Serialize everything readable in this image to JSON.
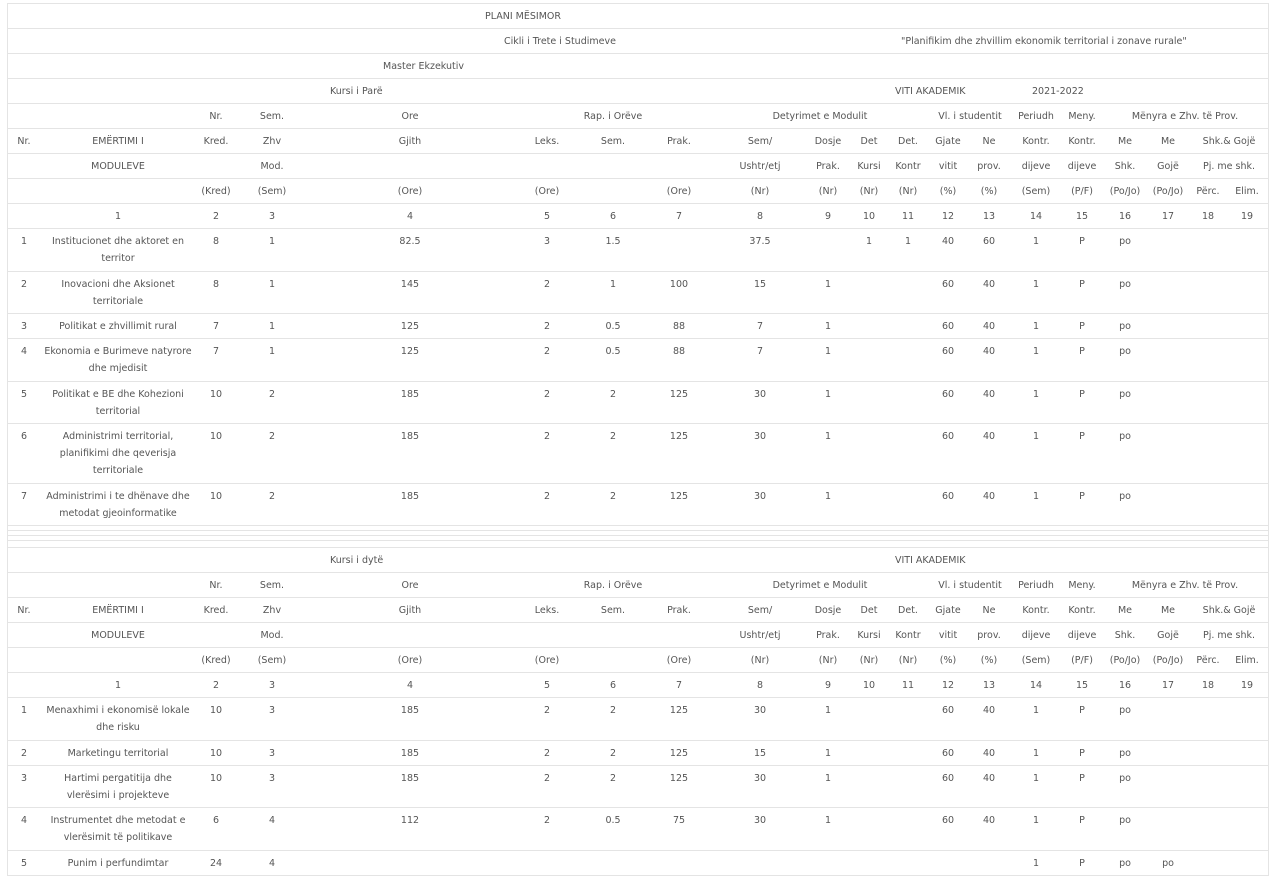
{
  "title": "PLANI MËSIMOR",
  "cycle": "Cikli i Trete i Studimeve",
  "program": "\"Planifikim dhe zhvillim ekonomik territorial i zonave rurale\"",
  "degree": "Master Ekzekutiv",
  "year1": {
    "course": "Kursi i Parë",
    "academic_label": "VITI AKADEMIK",
    "academic_year": "2021-2022"
  },
  "year2": {
    "course": "Kursi i dytë",
    "academic_label": "VITI AKADEMIK"
  },
  "header": {
    "r1": {
      "kred": "Nr.",
      "sem": "Sem.",
      "ore": "Ore",
      "rap": "Rap. i Orëve",
      "det": "Detyrimet e Modulit",
      "vl": "Vl. i studentit",
      "periudh": "Periudh",
      "meny": "Meny.",
      "menyra": "Mënyra e Zhv. të Prov."
    },
    "r2": {
      "nr": "Nr.",
      "name": "EMËRTIMI I",
      "kred": "Kred.",
      "sem": "Zhv",
      "ore": "Gjith",
      "leks": "Leks.",
      "semi": "Sem.",
      "prak": "Prak.",
      "ush": "Sem/",
      "dosje": "Dosje",
      "det": "Det",
      "detk": "Det.",
      "gjate": "Gjate",
      "ne": "Ne",
      "kontr": "Kontr.",
      "kontr2": "Kontr.",
      "me1": "Me",
      "me2": "Me",
      "shk": "Shk.& Gojë"
    },
    "r3": {
      "name": "MODULEVE",
      "sem": "Mod.",
      "ush": "Ushtr/etj",
      "dosje": "Prak.",
      "det": "Kursi",
      "detk": "Kontr",
      "gjate": "vitit",
      "ne": "prov.",
      "kontr": "dijeve",
      "kontr2": "dijeve",
      "me1": "Shk.",
      "me2": "Gojë",
      "shk": "Pj. me shk."
    },
    "r4": {
      "kred": "(Kred)",
      "sem": "(Sem)",
      "ore": "(Ore)",
      "leks": "(Ore)",
      "prak": "(Ore)",
      "ush": "(Nr)",
      "dosje": "(Nr)",
      "det": "(Nr)",
      "detk": "(Nr)",
      "gjate": "(%)",
      "ne": "(%)",
      "kontr": "(Sem)",
      "kontr2": "(P/F)",
      "me1": "(Po/Jo)",
      "me2": "(Po/Jo)",
      "perc": "Përc.",
      "elim": "Elim."
    },
    "nums": [
      "1",
      "2",
      "3",
      "4",
      "5",
      "6",
      "7",
      "8",
      "9",
      "10",
      "11",
      "12",
      "13",
      "14",
      "15",
      "16",
      "17",
      "18",
      "19"
    ]
  },
  "rows1": [
    {
      "nr": "1",
      "name": "Institucionet dhe aktoret en territor",
      "kred": "8",
      "sem": "1",
      "ore": "82.5",
      "leks": "3",
      "semi": "1.5",
      "prak": "",
      "ush": "37.5",
      "dosje": "",
      "det": "1",
      "detk": "1",
      "gjate": "40",
      "ne": "60",
      "kontr": "1",
      "kontr2": "P",
      "me1": "po",
      "me2": ""
    },
    {
      "nr": "2",
      "name": "Inovacioni dhe Aksionet territoriale",
      "kred": "8",
      "sem": "1",
      "ore": "145",
      "leks": "2",
      "semi": "1",
      "prak": "100",
      "ush": "15",
      "dosje": "1",
      "det": "",
      "detk": "",
      "gjate": "60",
      "ne": "40",
      "kontr": "1",
      "kontr2": "P",
      "me1": "po",
      "me2": ""
    },
    {
      "nr": "3",
      "name": "Politikat e zhvillimit rural",
      "kred": "7",
      "sem": "1",
      "ore": "125",
      "leks": "2",
      "semi": "0.5",
      "prak": "88",
      "ush": "7",
      "dosje": "1",
      "det": "",
      "detk": "",
      "gjate": "60",
      "ne": "40",
      "kontr": "1",
      "kontr2": "P",
      "me1": "po",
      "me2": ""
    },
    {
      "nr": "4",
      "name": "Ekonomia e Burimeve natyrore dhe mjedisit",
      "kred": "7",
      "sem": "1",
      "ore": "125",
      "leks": "2",
      "semi": "0.5",
      "prak": "88",
      "ush": "7",
      "dosje": "1",
      "det": "",
      "detk": "",
      "gjate": "60",
      "ne": "40",
      "kontr": "1",
      "kontr2": "P",
      "me1": "po",
      "me2": ""
    },
    {
      "nr": "5",
      "name": "Politikat e BE dhe Kohezioni territorial",
      "kred": "10",
      "sem": "2",
      "ore": "185",
      "leks": "2",
      "semi": "2",
      "prak": "125",
      "ush": "30",
      "dosje": "1",
      "det": "",
      "detk": "",
      "gjate": "60",
      "ne": "40",
      "kontr": "1",
      "kontr2": "P",
      "me1": "po",
      "me2": ""
    },
    {
      "nr": "6",
      "name": "Administrimi territorial, planifikimi dhe qeverisja territoriale",
      "kred": "10",
      "sem": "2",
      "ore": "185",
      "leks": "2",
      "semi": "2",
      "prak": "125",
      "ush": "30",
      "dosje": "1",
      "det": "",
      "detk": "",
      "gjate": "60",
      "ne": "40",
      "kontr": "1",
      "kontr2": "P",
      "me1": "po",
      "me2": ""
    },
    {
      "nr": "7",
      "name": "Administrimi i te dhënave dhe metodat gjeoinformatike",
      "kred": "10",
      "sem": "2",
      "ore": "185",
      "leks": "2",
      "semi": "2",
      "prak": "125",
      "ush": "30",
      "dosje": "1",
      "det": "",
      "detk": "",
      "gjate": "60",
      "ne": "40",
      "kontr": "1",
      "kontr2": "P",
      "me1": "po",
      "me2": ""
    }
  ],
  "rows2": [
    {
      "nr": "1",
      "name": "Menaxhimi i ekonomisë lokale dhe risku",
      "kred": "10",
      "sem": "3",
      "ore": "185",
      "leks": "2",
      "semi": "2",
      "prak": "125",
      "ush": "30",
      "dosje": "1",
      "det": "",
      "detk": "",
      "gjate": "60",
      "ne": "40",
      "kontr": "1",
      "kontr2": "P",
      "me1": "po",
      "me2": ""
    },
    {
      "nr": "2",
      "name": "Marketingu territorial",
      "kred": "10",
      "sem": "3",
      "ore": "185",
      "leks": "2",
      "semi": "2",
      "prak": "125",
      "ush": "15",
      "dosje": "1",
      "det": "",
      "detk": "",
      "gjate": "60",
      "ne": "40",
      "kontr": "1",
      "kontr2": "P",
      "me1": "po",
      "me2": ""
    },
    {
      "nr": "3",
      "name": "Hartimi pergatitija dhe vlerësimi i projekteve",
      "kred": "10",
      "sem": "3",
      "ore": "185",
      "leks": "2",
      "semi": "2",
      "prak": "125",
      "ush": "30",
      "dosje": "1",
      "det": "",
      "detk": "",
      "gjate": "60",
      "ne": "40",
      "kontr": "1",
      "kontr2": "P",
      "me1": "po",
      "me2": ""
    },
    {
      "nr": "4",
      "name": "Instrumentet dhe metodat e vlerësimit të politikave",
      "kred": "6",
      "sem": "4",
      "ore": "112",
      "leks": "2",
      "semi": "0.5",
      "prak": "75",
      "ush": "30",
      "dosje": "1",
      "det": "",
      "detk": "",
      "gjate": "60",
      "ne": "40",
      "kontr": "1",
      "kontr2": "P",
      "me1": "po",
      "me2": ""
    },
    {
      "nr": "5",
      "name": "Punim i perfundimtar",
      "kred": "24",
      "sem": "4",
      "ore": "",
      "leks": "",
      "semi": "",
      "prak": "",
      "ush": "",
      "dosje": "",
      "det": "",
      "detk": "",
      "gjate": "",
      "ne": "",
      "kontr": "1",
      "kontr2": "P",
      "me1": "po",
      "me2": "po"
    }
  ]
}
